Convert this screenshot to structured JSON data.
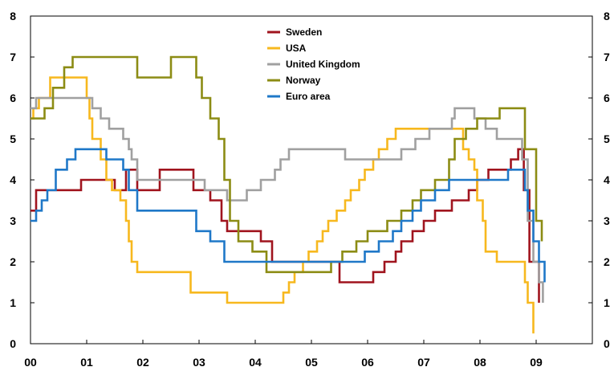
{
  "chart_data": {
    "type": "line",
    "step": true,
    "title": "",
    "xlabel": "",
    "ylabel": "",
    "xlim": [
      2000,
      2010
    ],
    "ylim": [
      0,
      8
    ],
    "x_ticks": [
      2000,
      2001,
      2002,
      2003,
      2004,
      2005,
      2006,
      2007,
      2008,
      2009
    ],
    "x_tick_labels": [
      "00",
      "01",
      "02",
      "03",
      "04",
      "05",
      "06",
      "07",
      "08",
      "09"
    ],
    "y_ticks": [
      0,
      1,
      2,
      3,
      4,
      5,
      6,
      7,
      8
    ],
    "y_tick_labels": [
      "0",
      "1",
      "2",
      "3",
      "4",
      "5",
      "6",
      "7",
      "8"
    ],
    "y2_tick_labels": [
      "0",
      "1",
      "2",
      "3",
      "4",
      "5",
      "6",
      "7",
      "8"
    ],
    "grid": false,
    "legend_position": "top-center",
    "series": [
      {
        "name": "Sweden",
        "color": "#A0141E",
        "points": [
          [
            2000.0,
            3.25
          ],
          [
            2000.1,
            3.75
          ],
          [
            2000.9,
            4.0
          ],
          [
            2001.5,
            3.75
          ],
          [
            2001.7,
            4.25
          ],
          [
            2001.9,
            3.75
          ],
          [
            2002.3,
            4.25
          ],
          [
            2002.9,
            3.75
          ],
          [
            2003.2,
            3.5
          ],
          [
            2003.4,
            3.0
          ],
          [
            2003.5,
            2.75
          ],
          [
            2004.1,
            2.5
          ],
          [
            2004.3,
            2.0
          ],
          [
            2005.5,
            1.5
          ],
          [
            2006.1,
            1.75
          ],
          [
            2006.3,
            2.0
          ],
          [
            2006.5,
            2.25
          ],
          [
            2006.6,
            2.5
          ],
          [
            2006.8,
            2.75
          ],
          [
            2007.0,
            3.0
          ],
          [
            2007.2,
            3.25
          ],
          [
            2007.5,
            3.5
          ],
          [
            2007.8,
            3.75
          ],
          [
            2007.95,
            4.0
          ],
          [
            2008.15,
            4.25
          ],
          [
            2008.55,
            4.5
          ],
          [
            2008.68,
            4.75
          ],
          [
            2008.78,
            3.75
          ],
          [
            2008.88,
            2.0
          ],
          [
            2009.05,
            1.0
          ]
        ]
      },
      {
        "name": "USA",
        "color": "#F7B81E",
        "points": [
          [
            2000.0,
            5.5
          ],
          [
            2000.05,
            5.75
          ],
          [
            2000.15,
            6.0
          ],
          [
            2000.35,
            6.5
          ],
          [
            2001.0,
            6.0
          ],
          [
            2001.05,
            5.5
          ],
          [
            2001.1,
            5.0
          ],
          [
            2001.25,
            4.5
          ],
          [
            2001.35,
            4.0
          ],
          [
            2001.45,
            3.75
          ],
          [
            2001.6,
            3.5
          ],
          [
            2001.7,
            3.0
          ],
          [
            2001.75,
            2.5
          ],
          [
            2001.8,
            2.0
          ],
          [
            2001.9,
            1.75
          ],
          [
            2002.85,
            1.25
          ],
          [
            2003.5,
            1.0
          ],
          [
            2004.5,
            1.25
          ],
          [
            2004.6,
            1.5
          ],
          [
            2004.7,
            1.75
          ],
          [
            2004.85,
            2.0
          ],
          [
            2004.95,
            2.25
          ],
          [
            2005.1,
            2.5
          ],
          [
            2005.2,
            2.75
          ],
          [
            2005.3,
            3.0
          ],
          [
            2005.45,
            3.25
          ],
          [
            2005.6,
            3.5
          ],
          [
            2005.7,
            3.75
          ],
          [
            2005.85,
            4.0
          ],
          [
            2005.95,
            4.25
          ],
          [
            2006.1,
            4.5
          ],
          [
            2006.2,
            4.75
          ],
          [
            2006.35,
            5.0
          ],
          [
            2006.5,
            5.25
          ],
          [
            2007.7,
            4.75
          ],
          [
            2007.8,
            4.5
          ],
          [
            2007.9,
            4.25
          ],
          [
            2007.95,
            3.5
          ],
          [
            2008.05,
            3.0
          ],
          [
            2008.1,
            2.25
          ],
          [
            2008.3,
            2.0
          ],
          [
            2008.8,
            1.5
          ],
          [
            2008.85,
            1.0
          ],
          [
            2008.95,
            0.25
          ]
        ]
      },
      {
        "name": "United Kingdom",
        "color": "#A0A0A0",
        "points": [
          [
            2000.0,
            5.75
          ],
          [
            2000.1,
            6.0
          ],
          [
            2001.1,
            5.75
          ],
          [
            2001.25,
            5.5
          ],
          [
            2001.4,
            5.25
          ],
          [
            2001.65,
            5.0
          ],
          [
            2001.75,
            4.75
          ],
          [
            2001.8,
            4.5
          ],
          [
            2001.9,
            4.0
          ],
          [
            2003.1,
            3.75
          ],
          [
            2003.5,
            3.5
          ],
          [
            2003.85,
            3.75
          ],
          [
            2004.1,
            4.0
          ],
          [
            2004.35,
            4.25
          ],
          [
            2004.45,
            4.5
          ],
          [
            2004.6,
            4.75
          ],
          [
            2005.6,
            4.5
          ],
          [
            2006.6,
            4.75
          ],
          [
            2006.85,
            5.0
          ],
          [
            2007.1,
            5.25
          ],
          [
            2007.5,
            5.5
          ],
          [
            2007.55,
            5.75
          ],
          [
            2007.9,
            5.5
          ],
          [
            2008.1,
            5.25
          ],
          [
            2008.3,
            5.0
          ],
          [
            2008.75,
            4.5
          ],
          [
            2008.85,
            3.0
          ],
          [
            2008.95,
            2.0
          ],
          [
            2009.05,
            1.5
          ],
          [
            2009.12,
            1.0
          ]
        ]
      },
      {
        "name": "Norway",
        "color": "#8C8C14",
        "points": [
          [
            2000.0,
            5.5
          ],
          [
            2000.25,
            5.75
          ],
          [
            2000.4,
            6.25
          ],
          [
            2000.6,
            6.75
          ],
          [
            2000.75,
            7.0
          ],
          [
            2001.9,
            6.5
          ],
          [
            2002.5,
            7.0
          ],
          [
            2002.95,
            6.5
          ],
          [
            2003.05,
            6.0
          ],
          [
            2003.2,
            5.5
          ],
          [
            2003.35,
            5.0
          ],
          [
            2003.45,
            4.0
          ],
          [
            2003.55,
            3.0
          ],
          [
            2003.7,
            2.5
          ],
          [
            2003.95,
            2.25
          ],
          [
            2004.2,
            1.75
          ],
          [
            2005.35,
            2.0
          ],
          [
            2005.55,
            2.25
          ],
          [
            2005.8,
            2.5
          ],
          [
            2006.0,
            2.75
          ],
          [
            2006.35,
            3.0
          ],
          [
            2006.6,
            3.25
          ],
          [
            2006.8,
            3.5
          ],
          [
            2006.95,
            3.75
          ],
          [
            2007.2,
            4.0
          ],
          [
            2007.45,
            4.5
          ],
          [
            2007.55,
            5.0
          ],
          [
            2007.75,
            5.25
          ],
          [
            2007.95,
            5.5
          ],
          [
            2008.35,
            5.75
          ],
          [
            2008.8,
            4.75
          ],
          [
            2009.0,
            3.0
          ],
          [
            2009.1,
            2.5
          ]
        ]
      },
      {
        "name": "Euro area",
        "color": "#1F78C8",
        "points": [
          [
            2000.0,
            3.0
          ],
          [
            2000.1,
            3.25
          ],
          [
            2000.2,
            3.5
          ],
          [
            2000.3,
            3.75
          ],
          [
            2000.45,
            4.25
          ],
          [
            2000.65,
            4.5
          ],
          [
            2000.8,
            4.75
          ],
          [
            2001.35,
            4.5
          ],
          [
            2001.65,
            4.25
          ],
          [
            2001.75,
            3.75
          ],
          [
            2001.9,
            3.25
          ],
          [
            2002.95,
            2.75
          ],
          [
            2003.2,
            2.5
          ],
          [
            2003.45,
            2.0
          ],
          [
            2005.95,
            2.25
          ],
          [
            2006.2,
            2.5
          ],
          [
            2006.45,
            2.75
          ],
          [
            2006.6,
            3.0
          ],
          [
            2006.8,
            3.25
          ],
          [
            2006.95,
            3.5
          ],
          [
            2007.2,
            3.75
          ],
          [
            2007.45,
            4.0
          ],
          [
            2008.5,
            4.25
          ],
          [
            2008.8,
            3.75
          ],
          [
            2008.85,
            3.25
          ],
          [
            2008.95,
            2.5
          ],
          [
            2009.05,
            2.0
          ],
          [
            2009.15,
            1.5
          ]
        ]
      }
    ]
  }
}
